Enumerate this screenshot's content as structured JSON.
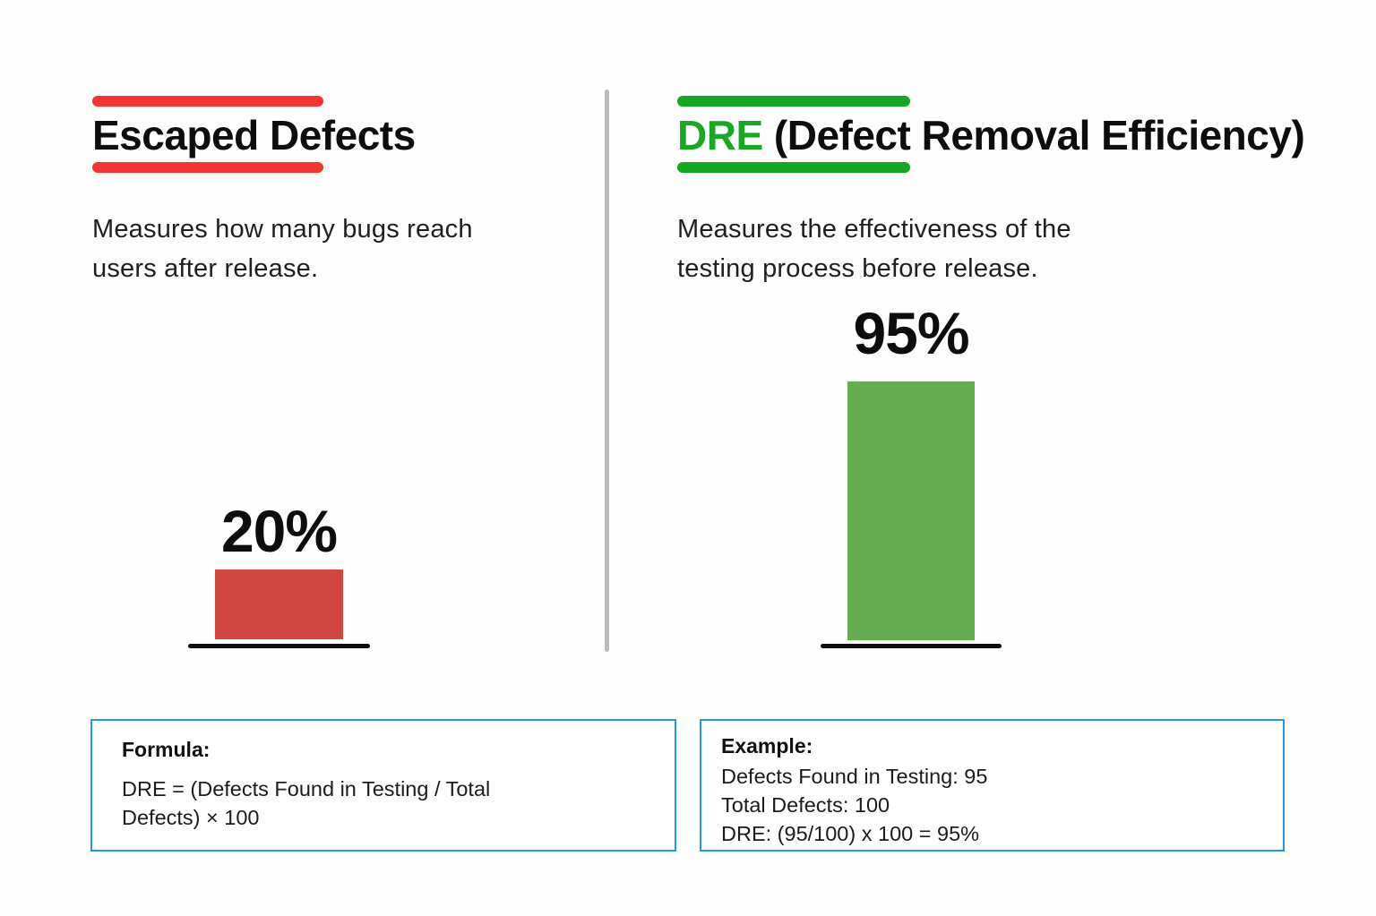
{
  "page": {
    "background_color": "#fdfdfd",
    "divider_color": "#bbbbbb",
    "box_border_color": "#2196f3"
  },
  "left_panel": {
    "title": "Escaped Defects",
    "accent_color": "#f73434",
    "description_line1": "Measures how many bugs reach",
    "description_line2": "users after release."
  },
  "right_panel": {
    "title_highlight": "DRE",
    "title_rest": " (Defect Removal Efficiency)",
    "accent_color": "#13a723",
    "description_line1": "Measures the effectiveness of the",
    "description_line2": "testing process before release."
  },
  "formula_box": {
    "label": "Formula:",
    "line1": "DRE = (Defects Found in Testing / Total",
    "line2": "Defects) × 100"
  },
  "example_box": {
    "label": "Example:",
    "line1": "Defects Found in Testing: 95",
    "line2": "Total Defects: 100",
    "line3": "DRE: (95/100) x 100 = 95%"
  },
  "chart_data": {
    "type": "bar",
    "categories": [
      "Escaped Defects",
      "DRE (Defect Removal Efficiency)"
    ],
    "panels": [
      {
        "name": "Escaped Defects",
        "value": 20,
        "label": "20%",
        "bar_color": "#d24742"
      },
      {
        "name": "DRE (Defect Removal Efficiency)",
        "value": 95,
        "label": "95%",
        "bar_color": "#65ad50"
      }
    ],
    "unit": "%",
    "ylim": [
      0,
      100
    ],
    "legend": "none",
    "grid": false
  }
}
